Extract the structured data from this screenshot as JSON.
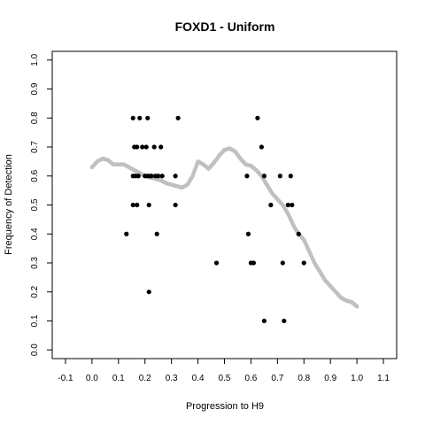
{
  "chart_data": {
    "type": "scatter",
    "title": "FOXD1 - Uniform",
    "xlabel": "Progression to H9",
    "ylabel": "Frequency of Detection",
    "xlim": [
      -0.15,
      1.15
    ],
    "ylim": [
      -0.03,
      1.03
    ],
    "xticks": [
      -0.1,
      0.0,
      0.1,
      0.2,
      0.3,
      0.4,
      0.5,
      0.6,
      0.7,
      0.8,
      0.9,
      1.0,
      1.1
    ],
    "yticks": [
      0.0,
      0.1,
      0.2,
      0.3,
      0.4,
      0.5,
      0.6,
      0.7,
      0.8,
      0.9,
      1.0
    ],
    "grid": false,
    "series": [
      {
        "style": "points",
        "color": "#000000",
        "points": [
          [
            0.13,
            0.4
          ],
          [
            0.155,
            0.8
          ],
          [
            0.155,
            0.6
          ],
          [
            0.155,
            0.5
          ],
          [
            0.16,
            0.7
          ],
          [
            0.165,
            0.6
          ],
          [
            0.17,
            0.7
          ],
          [
            0.17,
            0.5
          ],
          [
            0.175,
            0.6
          ],
          [
            0.18,
            0.8
          ],
          [
            0.19,
            0.7
          ],
          [
            0.2,
            0.6
          ],
          [
            0.205,
            0.7
          ],
          [
            0.21,
            0.8
          ],
          [
            0.21,
            0.6
          ],
          [
            0.215,
            0.5
          ],
          [
            0.215,
            0.2
          ],
          [
            0.22,
            0.6
          ],
          [
            0.225,
            0.6
          ],
          [
            0.235,
            0.7
          ],
          [
            0.24,
            0.6
          ],
          [
            0.245,
            0.4
          ],
          [
            0.25,
            0.6
          ],
          [
            0.26,
            0.7
          ],
          [
            0.265,
            0.6
          ],
          [
            0.315,
            0.6
          ],
          [
            0.325,
            0.8
          ],
          [
            0.315,
            0.5
          ],
          [
            0.47,
            0.3
          ],
          [
            0.585,
            0.6
          ],
          [
            0.59,
            0.4
          ],
          [
            0.6,
            0.3
          ],
          [
            0.61,
            0.3
          ],
          [
            0.625,
            0.8
          ],
          [
            0.64,
            0.7
          ],
          [
            0.65,
            0.6
          ],
          [
            0.65,
            0.1
          ],
          [
            0.675,
            0.5
          ],
          [
            0.71,
            0.6
          ],
          [
            0.72,
            0.3
          ],
          [
            0.725,
            0.1
          ],
          [
            0.74,
            0.5
          ],
          [
            0.75,
            0.6
          ],
          [
            0.755,
            0.5
          ],
          [
            0.78,
            0.4
          ],
          [
            0.8,
            0.3
          ]
        ]
      },
      {
        "style": "smooth",
        "color": "#c0c0c0",
        "x": [
          0.0,
          0.02,
          0.04,
          0.06,
          0.08,
          0.1,
          0.12,
          0.14,
          0.16,
          0.18,
          0.2,
          0.22,
          0.24,
          0.26,
          0.28,
          0.3,
          0.32,
          0.34,
          0.36,
          0.38,
          0.4,
          0.42,
          0.44,
          0.46,
          0.48,
          0.5,
          0.52,
          0.54,
          0.56,
          0.58,
          0.6,
          0.62,
          0.64,
          0.66,
          0.68,
          0.7,
          0.72,
          0.74,
          0.76,
          0.78,
          0.8,
          0.82,
          0.84,
          0.86,
          0.88,
          0.9,
          0.92,
          0.94,
          0.96,
          0.98,
          1.0
        ],
        "y": [
          0.63,
          0.65,
          0.66,
          0.655,
          0.64,
          0.64,
          0.64,
          0.63,
          0.62,
          0.61,
          0.6,
          0.595,
          0.59,
          0.585,
          0.575,
          0.57,
          0.565,
          0.56,
          0.57,
          0.6,
          0.65,
          0.64,
          0.625,
          0.645,
          0.67,
          0.69,
          0.695,
          0.685,
          0.66,
          0.64,
          0.635,
          0.62,
          0.6,
          0.57,
          0.54,
          0.52,
          0.5,
          0.47,
          0.43,
          0.4,
          0.38,
          0.34,
          0.3,
          0.27,
          0.24,
          0.22,
          0.2,
          0.18,
          0.17,
          0.165,
          0.15
        ]
      }
    ]
  }
}
